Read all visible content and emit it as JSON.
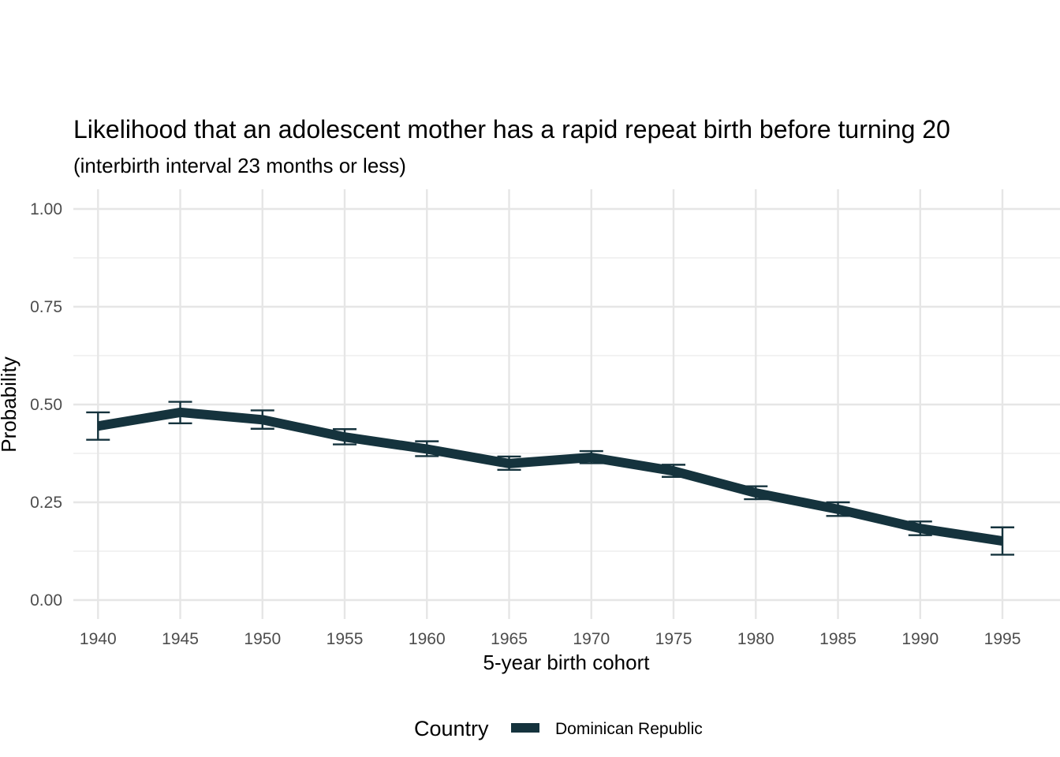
{
  "chart_data": {
    "type": "line",
    "title": "Likelihood that an adolescent mother has a rapid repeat birth before turning 20",
    "subtitle": "(interbirth interval 23 months or less)",
    "xlabel": "5-year birth cohort",
    "ylabel": "Probability",
    "x": [
      1940,
      1945,
      1950,
      1955,
      1960,
      1965,
      1970,
      1975,
      1980,
      1985,
      1990,
      1995
    ],
    "x_tick_labels": [
      "1940",
      "1945",
      "1950",
      "1955",
      "1960",
      "1965",
      "1970",
      "1975",
      "1980",
      "1985",
      "1990",
      "1995"
    ],
    "y_tick_values": [
      0,
      0.25,
      0.5,
      0.75,
      1.0
    ],
    "y_tick_labels": [
      "0.00",
      "0.25",
      "0.50",
      "0.75",
      "1.00"
    ],
    "ylim": [
      0,
      1
    ],
    "xlim": [
      1938.5,
      1998.5
    ],
    "grid": true,
    "legend": {
      "title": "Country",
      "position": "bottom"
    },
    "series": [
      {
        "name": "Dominican Republic",
        "color": "#15333d",
        "values": [
          0.445,
          0.48,
          0.461,
          0.417,
          0.386,
          0.349,
          0.365,
          0.33,
          0.274,
          0.232,
          0.183,
          0.151
        ],
        "lower": [
          0.41,
          0.452,
          0.438,
          0.398,
          0.368,
          0.333,
          0.35,
          0.315,
          0.258,
          0.215,
          0.166,
          0.116
        ],
        "upper": [
          0.48,
          0.507,
          0.485,
          0.437,
          0.406,
          0.367,
          0.381,
          0.346,
          0.291,
          0.25,
          0.201,
          0.186
        ]
      }
    ]
  }
}
